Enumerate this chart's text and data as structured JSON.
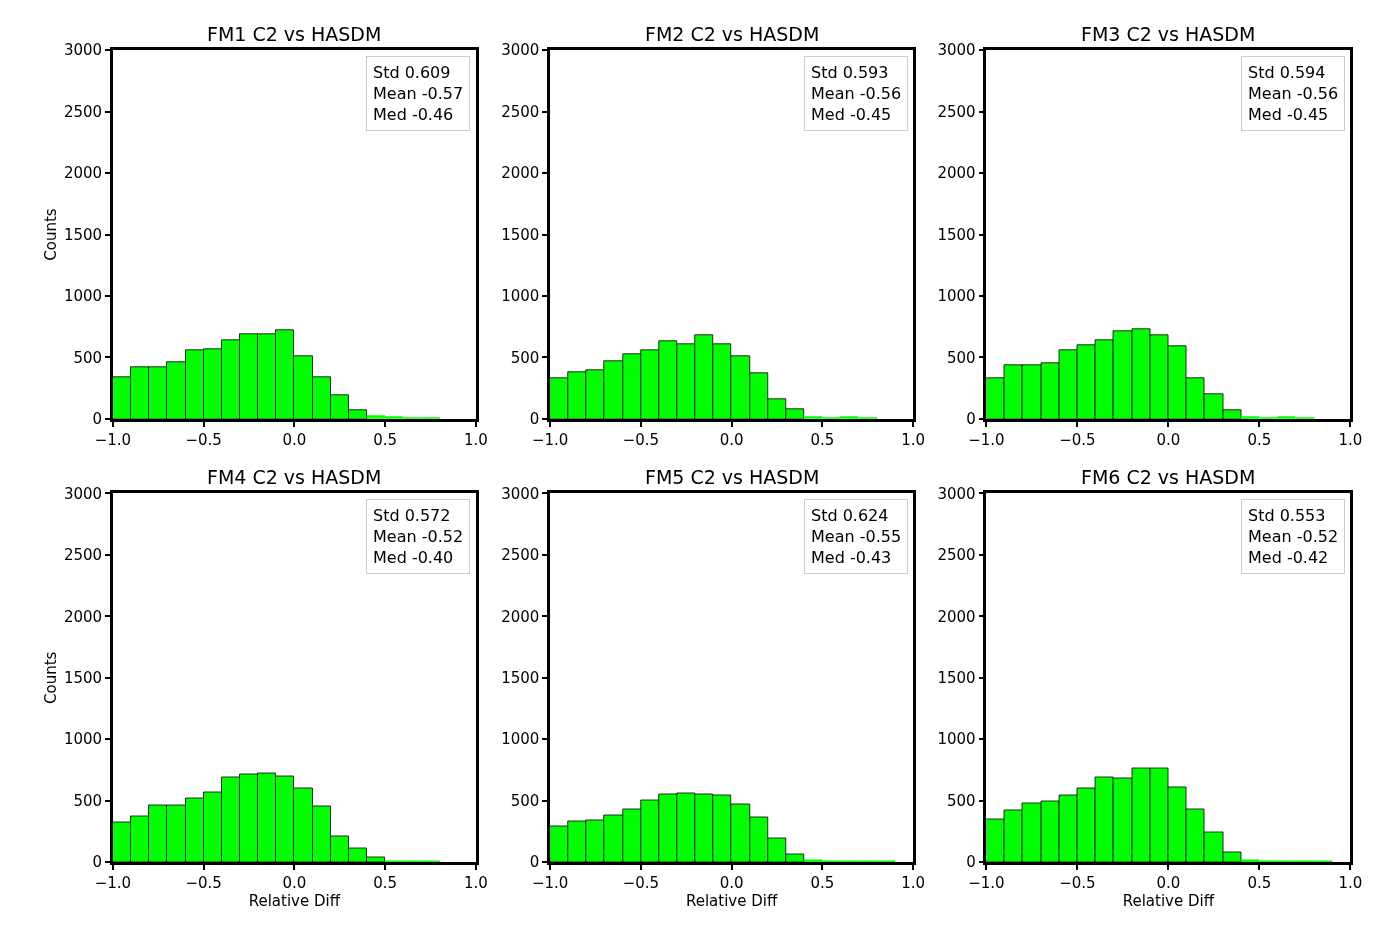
{
  "chart_data": [
    {
      "type": "histogram",
      "title": "FM1 C2 vs HASDM",
      "ylabel": "Counts",
      "color": "#00ff00",
      "bins": [
        -1.0,
        -0.9,
        -0.8,
        -0.7,
        -0.6,
        -0.5,
        -0.4,
        -0.3,
        -0.2,
        -0.1,
        0.0,
        0.1,
        0.2,
        0.3,
        0.4,
        0.5,
        0.6,
        0.7,
        0.8,
        0.9,
        1.0
      ],
      "values": [
        340,
        420,
        420,
        460,
        560,
        570,
        640,
        690,
        690,
        720,
        510,
        340,
        190,
        70,
        30,
        20,
        10,
        10,
        0,
        0
      ],
      "annotations": [
        "Std 0.609",
        "Mean -0.57",
        "Med -0.46"
      ],
      "xlim": [
        -1.0,
        1.0
      ],
      "ylim": [
        0,
        3000
      ],
      "xticks": [
        {
          "value": -1.0,
          "label": "−1.0"
        },
        {
          "value": -0.5,
          "label": "−0.5"
        },
        {
          "value": 0.0,
          "label": "0.0"
        },
        {
          "value": 0.5,
          "label": "0.5"
        },
        {
          "value": 1.0,
          "label": "1.0"
        }
      ],
      "yticks": [
        0,
        500,
        1000,
        1500,
        2000,
        2500,
        3000
      ]
    },
    {
      "type": "histogram",
      "title": "FM2 C2 vs HASDM",
      "color": "#00ff00",
      "bins": [
        -1.0,
        -0.9,
        -0.8,
        -0.7,
        -0.6,
        -0.5,
        -0.4,
        -0.3,
        -0.2,
        -0.1,
        0.0,
        0.1,
        0.2,
        0.3,
        0.4,
        0.5,
        0.6,
        0.7,
        0.8,
        0.9,
        1.0
      ],
      "values": [
        330,
        380,
        400,
        470,
        530,
        560,
        630,
        610,
        680,
        610,
        510,
        370,
        160,
        80,
        20,
        10,
        20,
        10,
        0,
        0
      ],
      "annotations": [
        "Std 0.593",
        "Mean -0.56",
        "Med -0.45"
      ],
      "xlim": [
        -1.0,
        1.0
      ],
      "ylim": [
        0,
        3000
      ],
      "xticks": [
        {
          "value": -1.0,
          "label": "−1.0"
        },
        {
          "value": -0.5,
          "label": "−0.5"
        },
        {
          "value": 0.0,
          "label": "0.0"
        },
        {
          "value": 0.5,
          "label": "0.5"
        },
        {
          "value": 1.0,
          "label": "1.0"
        }
      ],
      "yticks": [
        0,
        500,
        1000,
        1500,
        2000,
        2500,
        3000
      ]
    },
    {
      "type": "histogram",
      "title": "FM3 C2 vs HASDM",
      "color": "#00ff00",
      "bins": [
        -1.0,
        -0.9,
        -0.8,
        -0.7,
        -0.6,
        -0.5,
        -0.4,
        -0.3,
        -0.2,
        -0.1,
        0.0,
        0.1,
        0.2,
        0.3,
        0.4,
        0.5,
        0.6,
        0.7,
        0.8,
        0.9,
        1.0
      ],
      "values": [
        330,
        440,
        440,
        450,
        560,
        600,
        640,
        710,
        730,
        680,
        590,
        330,
        200,
        70,
        20,
        10,
        20,
        10,
        0,
        0
      ],
      "annotations": [
        "Std 0.594",
        "Mean -0.56",
        "Med -0.45"
      ],
      "xlim": [
        -1.0,
        1.0
      ],
      "ylim": [
        0,
        3000
      ],
      "xticks": [
        {
          "value": -1.0,
          "label": "−1.0"
        },
        {
          "value": -0.5,
          "label": "−0.5"
        },
        {
          "value": 0.0,
          "label": "0.0"
        },
        {
          "value": 0.5,
          "label": "0.5"
        },
        {
          "value": 1.0,
          "label": "1.0"
        }
      ],
      "yticks": [
        0,
        500,
        1000,
        1500,
        2000,
        2500,
        3000
      ]
    },
    {
      "type": "histogram",
      "title": "FM4 C2 vs HASDM",
      "ylabel": "Counts",
      "xlabel": "Relative Diff",
      "color": "#00ff00",
      "bins": [
        -1.0,
        -0.9,
        -0.8,
        -0.7,
        -0.6,
        -0.5,
        -0.4,
        -0.3,
        -0.2,
        -0.1,
        0.0,
        0.1,
        0.2,
        0.3,
        0.4,
        0.5,
        0.6,
        0.7,
        0.8,
        0.9,
        1.0
      ],
      "values": [
        320,
        370,
        460,
        460,
        520,
        570,
        690,
        710,
        720,
        700,
        600,
        450,
        210,
        110,
        40,
        10,
        10,
        10,
        0,
        0
      ],
      "annotations": [
        "Std 0.572",
        "Mean -0.52",
        "Med -0.40"
      ],
      "xlim": [
        -1.0,
        1.0
      ],
      "ylim": [
        0,
        3000
      ],
      "xticks": [
        {
          "value": -1.0,
          "label": "−1.0"
        },
        {
          "value": -0.5,
          "label": "−0.5"
        },
        {
          "value": 0.0,
          "label": "0.0"
        },
        {
          "value": 0.5,
          "label": "0.5"
        },
        {
          "value": 1.0,
          "label": "1.0"
        }
      ],
      "yticks": [
        0,
        500,
        1000,
        1500,
        2000,
        2500,
        3000
      ]
    },
    {
      "type": "histogram",
      "title": "FM5 C2 vs HASDM",
      "xlabel": "Relative Diff",
      "color": "#00ff00",
      "bins": [
        -1.0,
        -0.9,
        -0.8,
        -0.7,
        -0.6,
        -0.5,
        -0.4,
        -0.3,
        -0.2,
        -0.1,
        0.0,
        0.1,
        0.2,
        0.3,
        0.4,
        0.5,
        0.6,
        0.7,
        0.8,
        0.9,
        1.0
      ],
      "values": [
        290,
        330,
        340,
        380,
        430,
        500,
        550,
        560,
        550,
        540,
        470,
        360,
        190,
        60,
        20,
        10,
        10,
        10,
        10,
        0
      ],
      "annotations": [
        "Std 0.624",
        "Mean -0.55",
        "Med -0.43"
      ],
      "xlim": [
        -1.0,
        1.0
      ],
      "ylim": [
        0,
        3000
      ],
      "xticks": [
        {
          "value": -1.0,
          "label": "−1.0"
        },
        {
          "value": -0.5,
          "label": "−0.5"
        },
        {
          "value": 0.0,
          "label": "0.0"
        },
        {
          "value": 0.5,
          "label": "0.5"
        },
        {
          "value": 1.0,
          "label": "1.0"
        }
      ],
      "yticks": [
        0,
        500,
        1000,
        1500,
        2000,
        2500,
        3000
      ]
    },
    {
      "type": "histogram",
      "title": "FM6 C2 vs HASDM",
      "xlabel": "Relative Diff",
      "color": "#00ff00",
      "bins": [
        -1.0,
        -0.9,
        -0.8,
        -0.7,
        -0.6,
        -0.5,
        -0.4,
        -0.3,
        -0.2,
        -0.1,
        0.0,
        0.1,
        0.2,
        0.3,
        0.4,
        0.5,
        0.6,
        0.7,
        0.8,
        0.9,
        1.0
      ],
      "values": [
        350,
        420,
        480,
        490,
        540,
        600,
        690,
        680,
        760,
        760,
        610,
        430,
        240,
        80,
        20,
        10,
        10,
        10,
        10,
        0
      ],
      "annotations": [
        "Std 0.553",
        "Mean -0.52",
        "Med -0.42"
      ],
      "xlim": [
        -1.0,
        1.0
      ],
      "ylim": [
        0,
        3000
      ],
      "xticks": [
        {
          "value": -1.0,
          "label": "−1.0"
        },
        {
          "value": -0.5,
          "label": "−0.5"
        },
        {
          "value": 0.0,
          "label": "0.0"
        },
        {
          "value": 0.5,
          "label": "0.5"
        },
        {
          "value": 1.0,
          "label": "1.0"
        }
      ],
      "yticks": [
        0,
        500,
        1000,
        1500,
        2000,
        2500,
        3000
      ]
    }
  ]
}
